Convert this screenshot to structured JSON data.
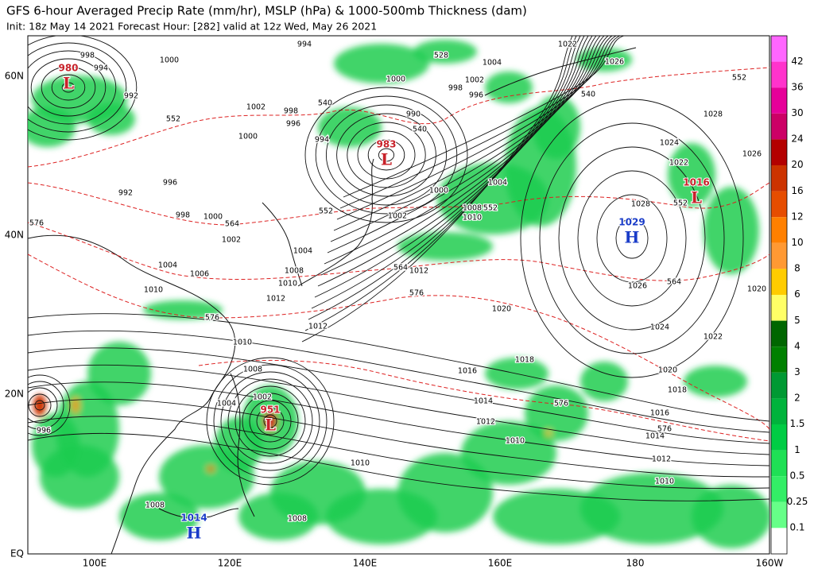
{
  "header": {
    "title": "GFS 6-hour Averaged Precip Rate (mm/hr), MSLP (hPa) & 1000-500mb Thickness (dam)",
    "subtitle": "Init: 18z May 14 2021   Forecast Hour: [282]   valid at 12z Wed, May 26 2021"
  },
  "axes": {
    "lat_labels": [
      "60N",
      "40N",
      "20N",
      "EQ"
    ],
    "lon_labels": [
      "100E",
      "120E",
      "140E",
      "160E",
      "180",
      "160W"
    ]
  },
  "colorbar": {
    "labels": [
      42,
      36,
      30,
      24,
      20,
      16,
      12,
      10,
      8,
      6,
      5,
      4,
      3,
      2,
      1.5,
      1,
      0.5,
      0.25,
      0.1
    ]
  },
  "centers": [
    {
      "letter": "L",
      "pressure": "980"
    },
    {
      "letter": "L",
      "pressure": "983"
    },
    {
      "letter": "L",
      "pressure": "1016"
    },
    {
      "letter": "H",
      "pressure": "1029"
    },
    {
      "letter": "L",
      "pressure": "951"
    },
    {
      "letter": "H",
      "pressure": "1014"
    }
  ],
  "contour_labels": [
    "998",
    "994",
    "992",
    "1002",
    "998",
    "996",
    "1000",
    "994",
    "996",
    "992",
    "998",
    "1000",
    "1002",
    "1004",
    "1006",
    "1004",
    "1008",
    "1010",
    "1012",
    "1010",
    "1012",
    "1010",
    "1008",
    "1004",
    "1002",
    "1010",
    "1008",
    "1008",
    "996",
    "990",
    "1000",
    "1002",
    "1004",
    "1008",
    "1010",
    "1012",
    "1020",
    "1018",
    "1016",
    "1014",
    "1012",
    "1010",
    "1028",
    "1026",
    "1024",
    "1022",
    "1020",
    "1018",
    "1016",
    "1014",
    "1012",
    "1010",
    "1020",
    "1022",
    "1024",
    "1026",
    "1028",
    "1026",
    "1022",
    "1002",
    "1000",
    "998",
    "996",
    "994",
    "1000",
    "1004",
    "540",
    "540",
    "540",
    "528",
    "552",
    "564",
    "576",
    "576",
    "564",
    "576",
    "576",
    "576",
    "552",
    "552",
    "564",
    "552",
    "552"
  ]
}
